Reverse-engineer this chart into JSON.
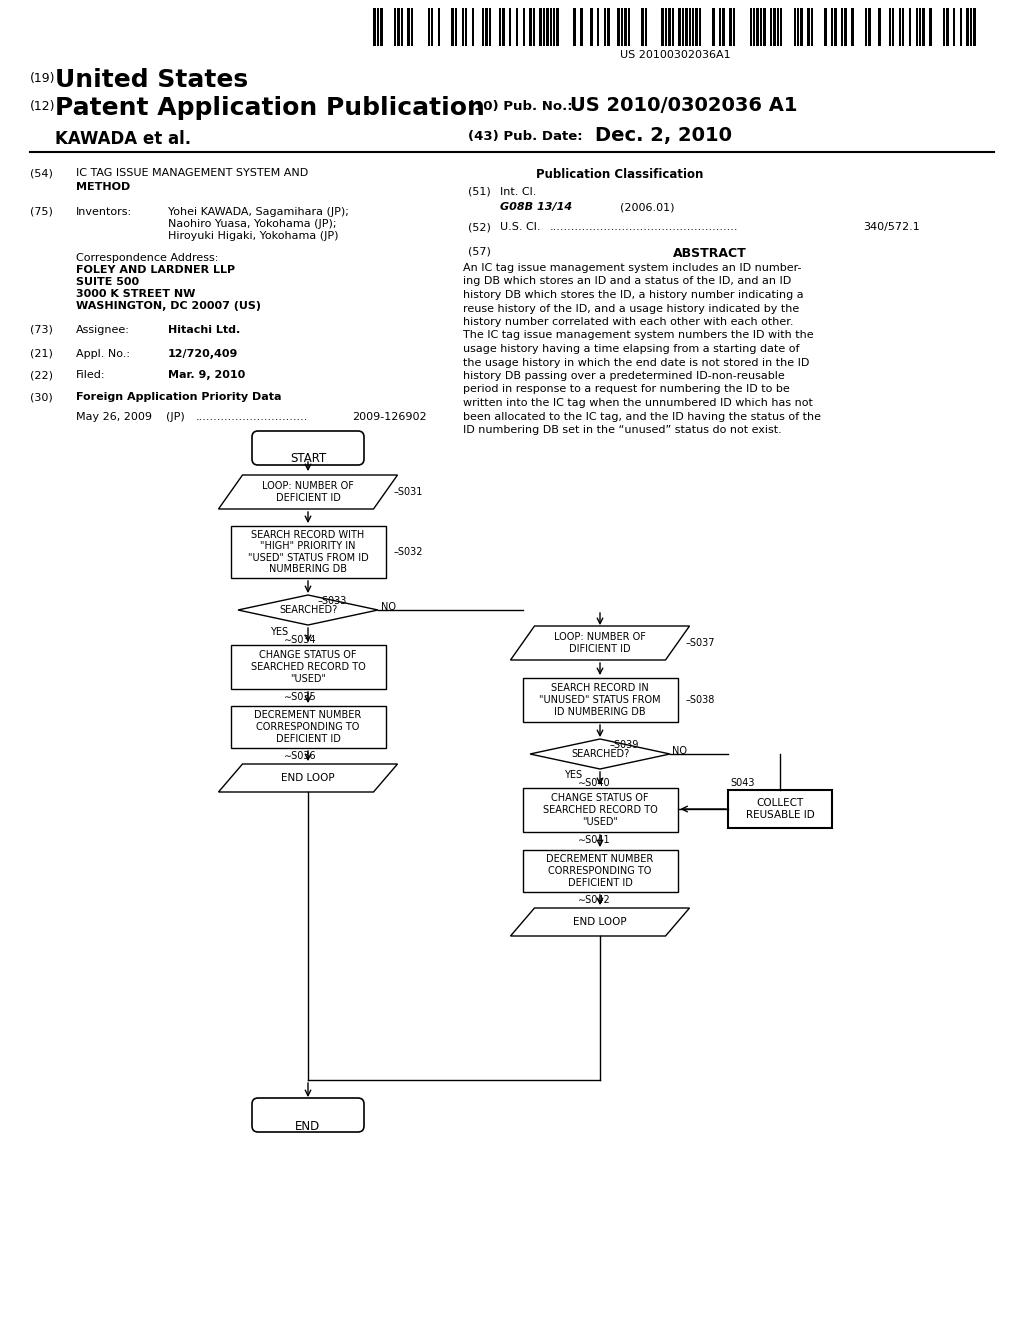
{
  "bg_color": "#ffffff",
  "barcode_text": "US 20100302036A1",
  "title_19_sup": "(19)",
  "title_19_main": "United States",
  "title_12_sup": "(12)",
  "title_12_main": "Patent Application Publication",
  "pub_no_label": "(10) Pub. No.:",
  "pub_no_value": "US 2010/0302036 A1",
  "author": "KAWADA et al.",
  "pub_date_label": "(43) Pub. Date:",
  "pub_date_value": "Dec. 2, 2010",
  "field54_label": "(54)",
  "field54_text1": "IC TAG ISSUE MANAGEMENT SYSTEM AND",
  "field54_text2": "METHOD",
  "field75_label": "(75)",
  "field75_name": "Inventors:",
  "field75_inv1": "Yohei KAWADA, Sagamihara (JP);",
  "field75_inv2": "Naohiro Yuasa, Yokohama (JP);",
  "field75_inv3": "Hiroyuki Higaki, Yokohama (JP)",
  "corr_label": "Correspondence Address:",
  "corr_line1": "FOLEY AND LARDNER LLP",
  "corr_line2": "SUITE 500",
  "corr_line3": "3000 K STREET NW",
  "corr_line4": "WASHINGTON, DC 20007 (US)",
  "field73_label": "(73)",
  "field73_name": "Assignee:",
  "field73_value": "Hitachi Ltd.",
  "field21_label": "(21)",
  "field21_name": "Appl. No.:",
  "field21_value": "12/720,409",
  "field22_label": "(22)",
  "field22_name": "Filed:",
  "field22_value": "Mar. 9, 2010",
  "field30_label": "(30)",
  "field30_name": "Foreign Application Priority Data",
  "field30_date": "May 26, 2009",
  "field30_country": "(JP)",
  "field30_dots": "...............................",
  "field30_number": "2009-126902",
  "pub_class_title": "Publication Classification",
  "field51_label": "(51)",
  "field51_name": "Int. Cl.",
  "field51_class": "G08B 13/14",
  "field51_year": "(2006.01)",
  "field52_label": "(52)",
  "field52_name": "U.S. Cl.",
  "field52_dots": "....................................................",
  "field52_value": "340/572.1",
  "field57_label": "(57)",
  "field57_title": "ABSTRACT",
  "abstract_line1": "An IC tag issue management system includes an ID number-",
  "abstract_line2": "ing DB which stores an ID and a status of the ID, and an ID",
  "abstract_line3": "history DB which stores the ID, a history number indicating a",
  "abstract_line4": "reuse history of the ID, and a usage history indicated by the",
  "abstract_line5": "history number correlated with each other with each other.",
  "abstract_line6": "The IC tag issue management system numbers the ID with the",
  "abstract_line7": "usage history having a time elapsing from a starting date of",
  "abstract_line8": "the usage history in which the end date is not stored in the ID",
  "abstract_line9": "history DB passing over a predetermined ID-non-reusable",
  "abstract_line10": "period in response to a request for numbering the ID to be",
  "abstract_line11": "written into the IC tag when the unnumbered ID which has not",
  "abstract_line12": "been allocated to the IC tag, and the ID having the status of the",
  "abstract_line13": "ID numbering DB set in the “unused” status do not exist."
}
